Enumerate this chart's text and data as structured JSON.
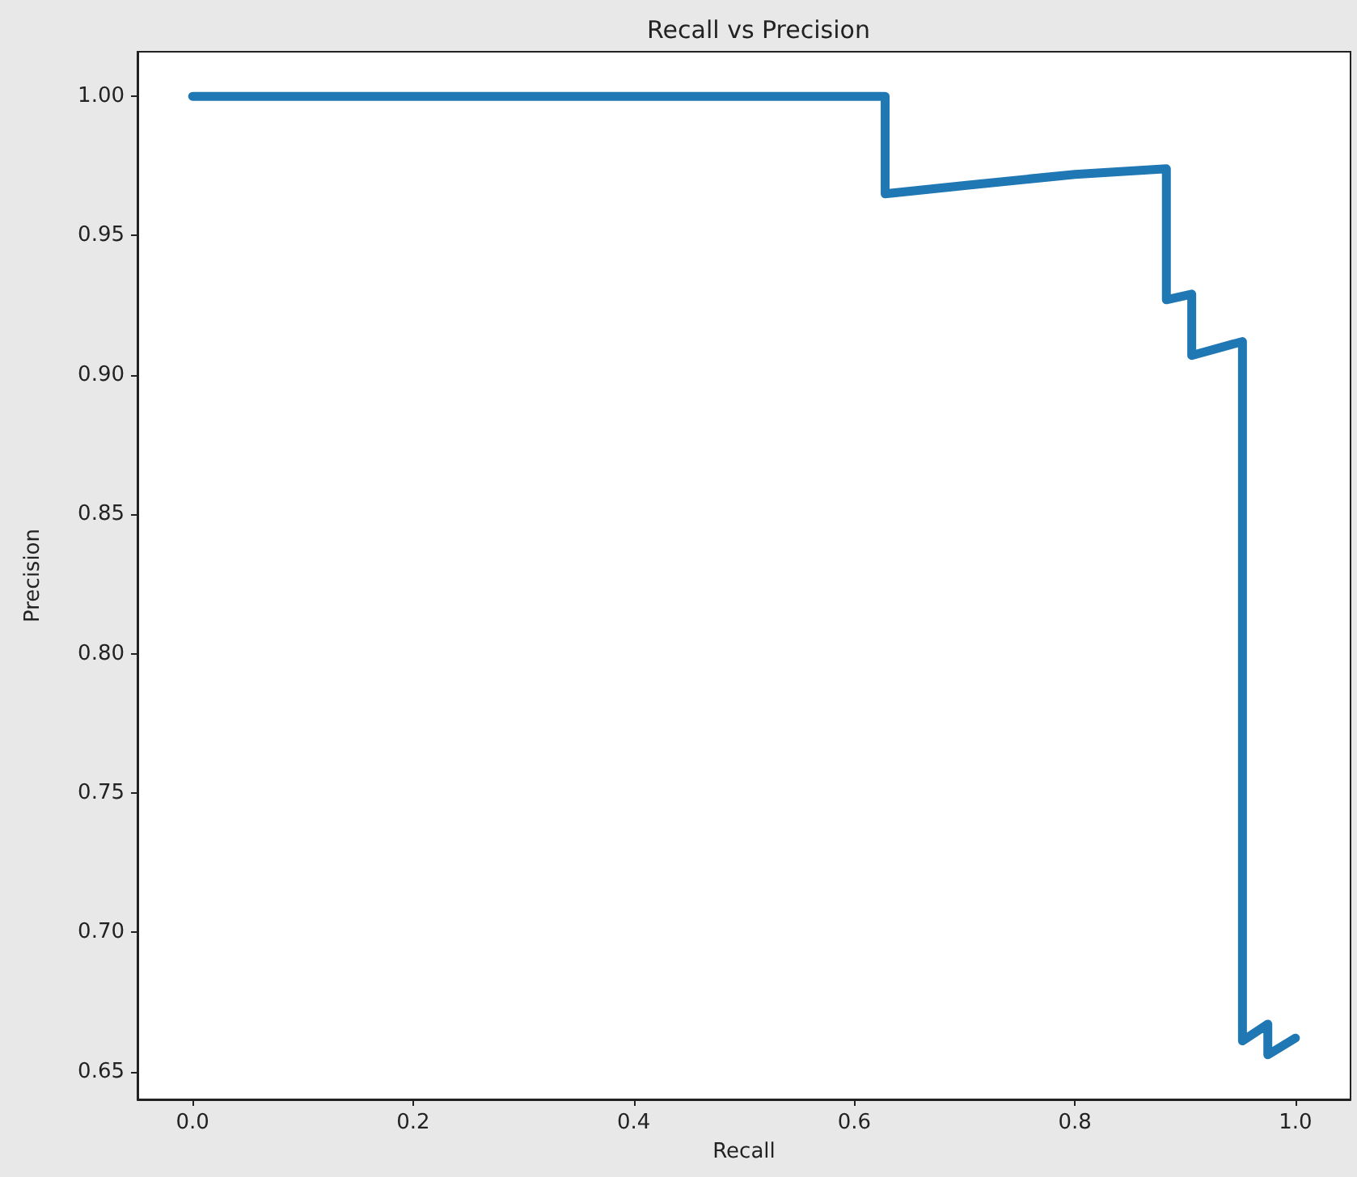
{
  "chart_data": {
    "type": "line",
    "title": "Recall vs Precision",
    "xlabel": "Recall",
    "ylabel": "Precision",
    "xlim": [
      -0.05,
      1.05
    ],
    "xticks": [
      {
        "value": 0,
        "label": "0.0"
      },
      0.2,
      0.4,
      0.6,
      0.8,
      {
        "value": 1,
        "label": "1.0"
      }
    ],
    "ylim": [
      0.64,
      1.016
    ],
    "yticks": [
      0.65,
      {
        "value": 0.7,
        "label": "0.70"
      },
      0.75,
      {
        "value": 0.8,
        "label": "0.80"
      },
      0.85,
      {
        "value": 0.9,
        "label": "0.90"
      },
      0.95,
      {
        "value": 1,
        "label": "1.00"
      }
    ],
    "grid": false,
    "marker": "none",
    "line_style": "solid",
    "series": [
      {
        "color": "#1f77b4",
        "x": [
          0.0,
          0.628,
          0.628,
          0.7,
          0.8,
          0.883,
          0.883,
          0.906,
          0.906,
          0.952,
          0.952,
          0.975,
          0.975,
          1.0
        ],
        "values": [
          1.0,
          1.0,
          0.965,
          0.968,
          0.972,
          0.974,
          0.927,
          0.929,
          0.907,
          0.912,
          0.661,
          0.667,
          0.656,
          0.662
        ]
      }
    ]
  }
}
